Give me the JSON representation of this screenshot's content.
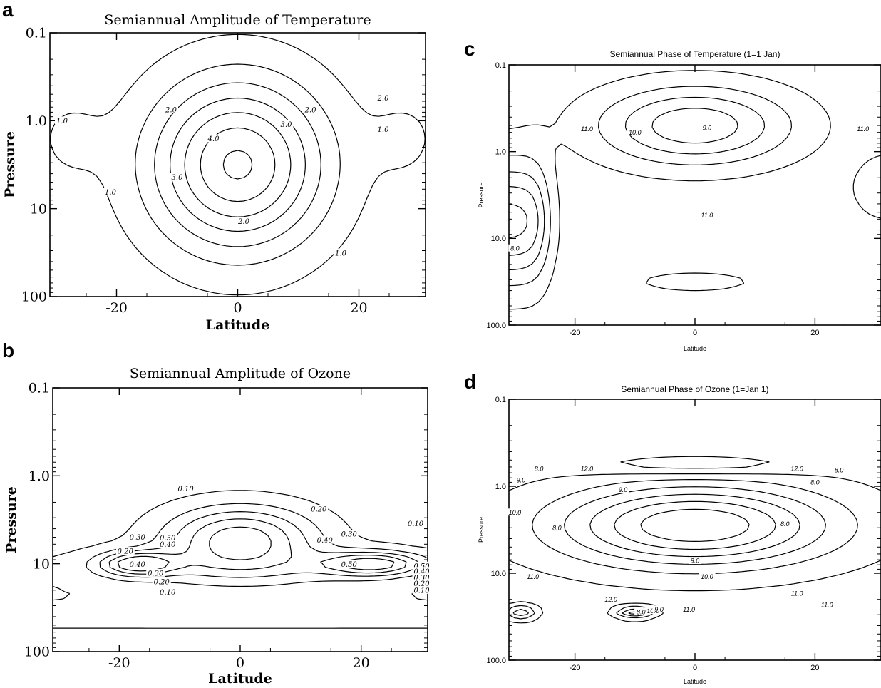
{
  "panels": [
    {
      "id": "a",
      "label": "a"
    },
    {
      "id": "b",
      "label": "b"
    },
    {
      "id": "c",
      "label": "c"
    },
    {
      "id": "d",
      "label": "d"
    }
  ],
  "chart_data": [
    {
      "panel": "a",
      "type": "contour",
      "title": "Semiannual Amplitude of Temperature",
      "xlabel": "Latitude",
      "ylabel": "Pressure",
      "xlim": [
        -31,
        31
      ],
      "ylim": [
        100,
        0.1
      ],
      "y_scale": "log",
      "x_ticks": [
        -20,
        0,
        20
      ],
      "x_tick_labels": [
        "-20",
        "0",
        "20"
      ],
      "y_ticks": [
        0.1,
        1,
        10,
        100
      ],
      "y_tick_labels": [
        "0.1",
        "1.0",
        "10",
        "100"
      ],
      "contour_labels": [
        {
          "text": "1.0",
          "x": -29,
          "p": 1.0
        },
        {
          "text": "2.0",
          "x": -11,
          "p": 0.75
        },
        {
          "text": "2.0",
          "x": 12,
          "p": 0.75
        },
        {
          "text": "3.0",
          "x": 8,
          "p": 1.1
        },
        {
          "text": "4.0",
          "x": -4,
          "p": 1.6
        },
        {
          "text": "3.0",
          "x": -10,
          "p": 4.4
        },
        {
          "text": "1.0",
          "x": -21,
          "p": 6.5
        },
        {
          "text": "2.0",
          "x": 1,
          "p": 14
        },
        {
          "text": "1.0",
          "x": 17,
          "p": 32
        },
        {
          "text": "2.0",
          "x": 24,
          "p": 0.55
        },
        {
          "text": "1.0",
          "x": 24,
          "p": 1.25
        }
      ]
    },
    {
      "panel": "b",
      "type": "contour",
      "title": "Semiannual Amplitude of Ozone",
      "xlabel": "Latitude",
      "ylabel": "Pressure",
      "xlim": [
        -31,
        31
      ],
      "ylim": [
        100,
        0.1
      ],
      "y_scale": "log",
      "x_ticks": [
        -20,
        0,
        20
      ],
      "x_tick_labels": [
        "-20",
        "0",
        "20"
      ],
      "y_ticks": [
        0.1,
        1,
        10,
        100
      ],
      "y_tick_labels": [
        "0.1",
        "1.0",
        "10",
        "100"
      ],
      "contour_labels": [
        {
          "text": "0.10",
          "x": -9,
          "p": 1.4
        },
        {
          "text": "0.20",
          "x": 13,
          "p": 2.4
        },
        {
          "text": "0.10",
          "x": 29,
          "p": 3.5
        },
        {
          "text": "0.30",
          "x": 18,
          "p": 4.6
        },
        {
          "text": "0.40",
          "x": 14,
          "p": 5.4
        },
        {
          "text": "0.50",
          "x": -12,
          "p": 5.1
        },
        {
          "text": "0.40",
          "x": -12,
          "p": 6.0
        },
        {
          "text": "0.30",
          "x": -17,
          "p": 5.0
        },
        {
          "text": "0.20",
          "x": -19,
          "p": 7.2
        },
        {
          "text": "0.40",
          "x": -17,
          "p": 10.2
        },
        {
          "text": "0.50",
          "x": 18,
          "p": 10.2
        },
        {
          "text": "0.30",
          "x": -14,
          "p": 12.8
        },
        {
          "text": "0.20",
          "x": -13,
          "p": 16
        },
        {
          "text": "0.10",
          "x": -12,
          "p": 21
        },
        {
          "text": "0.50",
          "x": 30,
          "p": 10.6
        },
        {
          "text": "0.40",
          "x": 30,
          "p": 12.2
        },
        {
          "text": "0.30",
          "x": 30,
          "p": 14.4
        },
        {
          "text": "0.20",
          "x": 30,
          "p": 16.8
        },
        {
          "text": "0.10",
          "x": 30,
          "p": 20
        }
      ]
    },
    {
      "panel": "c",
      "type": "contour",
      "title": "Semiannual Phase of Temperature (1=1 Jan)",
      "xlabel": "Latitude",
      "ylabel": "Pressure",
      "xlim": [
        -31,
        31
      ],
      "ylim": [
        100,
        0.1
      ],
      "y_scale": "log",
      "x_ticks": [
        -20,
        0,
        20
      ],
      "x_tick_labels": [
        "-20",
        "0",
        "20"
      ],
      "y_ticks": [
        0.1,
        1,
        10,
        100
      ],
      "y_tick_labels": [
        "0.1",
        "1.0",
        "10.0",
        "100.0"
      ],
      "contour_labels": [
        {
          "text": "11.0",
          "x": -18,
          "p": 0.55
        },
        {
          "text": "10.0",
          "x": -10,
          "p": 0.6
        },
        {
          "text": "9.0",
          "x": 2,
          "p": 0.53
        },
        {
          "text": "11.0",
          "x": 28,
          "p": 0.55
        },
        {
          "text": "11.0",
          "x": 2,
          "p": 5.4
        },
        {
          "text": "8.0",
          "x": -30,
          "p": 13
        }
      ]
    },
    {
      "panel": "d",
      "type": "contour",
      "title": "Semiannual Phase of Ozone (1=Jan 1)",
      "xlabel": "Latitude",
      "ylabel": "Pressure",
      "xlim": [
        -31,
        31
      ],
      "ylim": [
        100,
        0.1
      ],
      "y_scale": "log",
      "x_ticks": [
        -20,
        0,
        20
      ],
      "x_tick_labels": [
        "-20",
        "0",
        "20"
      ],
      "y_ticks": [
        0.1,
        1,
        10,
        100
      ],
      "y_tick_labels": [
        "0.1",
        "1.0",
        "10.0",
        "100.0"
      ],
      "contour_labels": [
        {
          "text": "8.0",
          "x": -26,
          "p": 0.63
        },
        {
          "text": "12.0",
          "x": -18,
          "p": 0.63
        },
        {
          "text": "12.0",
          "x": 17,
          "p": 0.63
        },
        {
          "text": "8.0",
          "x": 24,
          "p": 0.65
        },
        {
          "text": "8.0",
          "x": 20,
          "p": 0.9
        },
        {
          "text": "9.0",
          "x": -29,
          "p": 0.85
        },
        {
          "text": "9.0",
          "x": -12,
          "p": 1.1
        },
        {
          "text": "10.0",
          "x": -30,
          "p": 2.0
        },
        {
          "text": "8.0",
          "x": -23,
          "p": 3.0
        },
        {
          "text": "8.0",
          "x": 15,
          "p": 2.7
        },
        {
          "text": "9.0",
          "x": 0,
          "p": 7.2
        },
        {
          "text": "10.0",
          "x": 2,
          "p": 11
        },
        {
          "text": "11.0",
          "x": -27,
          "p": 11
        },
        {
          "text": "11.0",
          "x": 17,
          "p": 17
        },
        {
          "text": "11.0",
          "x": 22,
          "p": 23
        },
        {
          "text": "12.0",
          "x": -14,
          "p": 20
        },
        {
          "text": "10.0",
          "x": -7,
          "p": 27
        },
        {
          "text": "8.0",
          "x": -9,
          "p": 28
        },
        {
          "text": "9.0",
          "x": -6,
          "p": 26
        },
        {
          "text": "11.0",
          "x": -1,
          "p": 26
        }
      ]
    }
  ]
}
